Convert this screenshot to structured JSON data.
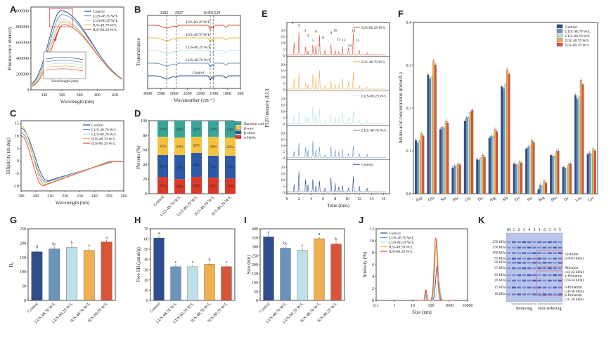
{
  "colors": {
    "Control": "#2f4c8c",
    "LUS-48.70 W/L": "#6b94bd",
    "LUS-80.29 W/L": "#bfe0e6",
    "IUS-48.70 W/L": "#f0b04f",
    "IUS-80.29 W/L": "#d9553a"
  },
  "panels": {
    "A": {
      "label": "A",
      "xlabel": "Wavelength (nm)",
      "ylabel": "Fluorescence intensity",
      "xticks": [
        "340",
        "360",
        "380",
        "400",
        "420"
      ],
      "yticks": [
        "0",
        "200000",
        "400000",
        "600000",
        "800000",
        "1000000"
      ],
      "legend": [
        "Control",
        "LUS-48.70 W/L",
        "LUS-80.29 W/L",
        "IUS-48.70 W/L",
        "IUS-80.29 W/L"
      ],
      "inset_xlabel": "Wavelength (nm)"
    },
    "B": {
      "label": "B",
      "xlabel": "Wavenumber (cm⁻¹)",
      "ylabel": "Transmittance",
      "xticks": [
        "4000",
        "3500",
        "3000",
        "2500",
        "2000",
        "1500",
        "1000",
        "500"
      ],
      "peaks": [
        "3282",
        "2927",
        "1640",
        "1529"
      ],
      "curve_labels": [
        "IUS-80.29 W/L",
        "IUS-48.70 W/L",
        "LUS-80.29 W/L",
        "LUS-48.70 W/L",
        "Control"
      ]
    },
    "C": {
      "label": "C",
      "xlabel": "Wavelength (nm)",
      "ylabel": "Ellipticity (m deg)",
      "xticks": [
        "190",
        "200",
        "210",
        "220",
        "230",
        "240",
        "250",
        "260"
      ],
      "yticks": [
        "-10",
        "-5",
        "0",
        "5",
        "10",
        "15"
      ],
      "legend": [
        "Control",
        "LUS-48.70 W/L",
        "LUS-80.29 W/L",
        "IUS-48.70 W/L",
        "IUS-80.29 W/L"
      ]
    },
    "D": {
      "label": "D",
      "ylabel": "Percent (%)",
      "yticks": [
        "0",
        "20",
        "40",
        "60",
        "80",
        "100"
      ],
      "legend": [
        "Random coil",
        "β-turn",
        "β-sheet",
        "α-Helix"
      ]
    },
    "E": {
      "label": "E",
      "xlabel": "Time (min)",
      "ylabel": "FLD intensity (LU)",
      "xticks": [
        "0",
        "2",
        "4",
        "6",
        "8",
        "10",
        "12",
        "14",
        "16"
      ],
      "traces": [
        "IUS-80.29 W/L",
        "IUS-48.70 W/L",
        "LUS-80.29 W/L",
        "LUS-48.70 W/L",
        "Control"
      ],
      "peak_ids": [
        "1",
        "2",
        "3",
        "4",
        "5",
        "6",
        "7",
        "8",
        "9",
        "10",
        "11",
        "12",
        "13",
        "14",
        "15"
      ]
    },
    "F": {
      "label": "F",
      "ylabel": "Amino acid concentration (mmol/L)",
      "yticks": [
        "0.0",
        "0.1",
        "0.2",
        "0.3",
        "0.4"
      ],
      "legend": [
        "Control",
        "LUS-48.70 W/L",
        "LUS-80.29 W/L",
        "IUS-48.70 W/L",
        "IUS-80.29 W/L"
      ]
    },
    "G": {
      "label": "G",
      "ylabel": "H₀",
      "yticks": [
        "0",
        "50",
        "100",
        "150",
        "200",
        "250"
      ]
    },
    "H": {
      "label": "H",
      "ylabel": "Free SH (μmol/g)",
      "yticks": [
        "0",
        "10",
        "20",
        "30",
        "40",
        "50",
        "60",
        "70"
      ]
    },
    "I": {
      "label": "I",
      "ylabel": "Size (nm)",
      "yticks": [
        "0",
        "50",
        "100",
        "150",
        "200",
        "250",
        "300",
        "350",
        "400"
      ]
    },
    "J": {
      "label": "J",
      "xlabel": "Size (nm)",
      "ylabel": "Intensity (%)",
      "xticks": [
        "0.1",
        "1",
        "10",
        "100",
        "1000",
        "10000"
      ],
      "yticks": [
        "0",
        "2",
        "4",
        "6",
        "8",
        "10",
        "12"
      ],
      "legend": [
        "Control",
        "LUS-48.70 W/L",
        "LUS-80.29 W/L",
        "IUS-48.70 W/L",
        "IUS-80.29 W/L"
      ]
    },
    "K": {
      "label": "K",
      "lanes": [
        "M",
        "1",
        "2",
        "3",
        "4",
        "5",
        "1",
        "2",
        "3",
        "4",
        "5"
      ],
      "markers": [
        "250 kDa",
        "150 kDa",
        "100 kDa",
        "75 kDa",
        "50 kDa",
        "37 kDa",
        "25 kDa",
        "20 kDa",
        "15 kDa",
        "10 kDa"
      ],
      "bands": [
        "Globulin\n(54-63 kDa)",
        "Albumin\n(43-22 kDa)",
        "γ-Prolamin\n(24-34 kDa)",
        "α-Prolamin\n(18-36 kDa)",
        "β-Prolamin\n(11-36 kDa)"
      ],
      "groups": [
        "Reducing",
        "Non-reducing"
      ]
    }
  },
  "chart_data": [
    {
      "panel": "A",
      "type": "line",
      "title": "",
      "xlabel": "Wavelength (nm)",
      "ylabel": "Fluorescence intensity",
      "xlim": [
        325,
        430
      ],
      "ylim": [
        0,
        1050000
      ],
      "series": [
        {
          "name": "Control",
          "peak_x": 359,
          "peak_y": 1010000
        },
        {
          "name": "LUS-48.70 W/L",
          "peak_x": 360,
          "peak_y": 960000
        },
        {
          "name": "LUS-80.29 W/L",
          "peak_x": 360,
          "peak_y": 900000
        },
        {
          "name": "IUS-48.70 W/L",
          "peak_x": 361,
          "peak_y": 870000
        },
        {
          "name": "IUS-80.29 W/L",
          "peak_x": 362,
          "peak_y": 830000
        }
      ]
    },
    {
      "panel": "B",
      "type": "line",
      "title": "",
      "xlabel": "Wavenumber (cm⁻¹)",
      "ylabel": "Transmittance",
      "xlim": [
        4000,
        500
      ],
      "series": [
        "IUS-80.29 W/L",
        "IUS-48.70 W/L",
        "LUS-80.29 W/L",
        "LUS-48.70 W/L",
        "Control"
      ],
      "peaks": [
        3282,
        2927,
        1640,
        1529
      ]
    },
    {
      "panel": "C",
      "type": "line",
      "title": "",
      "xlabel": "Wavelength (nm)",
      "ylabel": "Ellipticity (m deg)",
      "xlim": [
        190,
        260
      ],
      "ylim": [
        -12,
        16
      ],
      "series": [
        {
          "name": "Control",
          "start": 13,
          "min_x": 208,
          "min_y": -8
        },
        {
          "name": "LUS-48.70 W/L",
          "start": 11,
          "min_x": 207,
          "min_y": -8.5
        },
        {
          "name": "LUS-80.29 W/L",
          "start": 12,
          "min_x": 206,
          "min_y": -9
        },
        {
          "name": "IUS-48.70 W/L",
          "start": 14,
          "min_x": 206,
          "min_y": -9.5
        },
        {
          "name": "IUS-80.29 W/L",
          "start": 10,
          "min_x": 205,
          "min_y": -10
        }
      ]
    },
    {
      "panel": "D",
      "type": "bar",
      "title": "",
      "ylabel": "Percent (%)",
      "ylim": [
        0,
        100
      ],
      "categories": [
        "Control",
        "LUS-48.70 W/L",
        "LUS-80.29 W/L",
        "IUS-48.70 W/L",
        "IUS-80.29 W/L"
      ],
      "series": [
        {
          "name": "α-Helix",
          "values": [
            23,
            20,
            23,
            22,
            21
          ]
        },
        {
          "name": "β-sheet",
          "values": [
            30,
            33,
            33,
            30,
            31
          ]
        },
        {
          "name": "β-turn",
          "values": [
            25,
            24,
            22,
            26,
            25
          ]
        },
        {
          "name": "Random coil",
          "values": [
            22,
            23,
            22,
            22,
            23
          ]
        }
      ]
    },
    {
      "panel": "E",
      "type": "line",
      "title": "",
      "xlabel": "Time (min)",
      "ylabel": "FLD intensity (LU)",
      "xlim": [
        0,
        17
      ],
      "ylim": [
        0,
        25
      ],
      "series": [
        "IUS-80.29 W/L",
        "IUS-48.70 W/L",
        "LUS-80.29 W/L",
        "LUS-48.70 W/L",
        "Control"
      ]
    },
    {
      "panel": "F",
      "type": "bar",
      "title": "",
      "ylabel": "Amino acid concentration (mmol/L)",
      "ylim": [
        0,
        0.4
      ],
      "categories": [
        "Asp",
        "Glu",
        "Ser",
        "His",
        "Gly",
        "Thr",
        "Arg",
        "Ala",
        "Tyr",
        "Val",
        "Met",
        "Phe",
        "Ile",
        "Leu",
        "Lys"
      ],
      "series": [
        {
          "name": "Control",
          "values": [
            0.125,
            0.278,
            0.15,
            0.06,
            0.17,
            0.08,
            0.13,
            0.25,
            0.07,
            0.105,
            0.01,
            0.09,
            0.062,
            0.23,
            0.092
          ]
        },
        {
          "name": "LUS-48.70 W/L",
          "values": [
            0.118,
            0.268,
            0.155,
            0.065,
            0.178,
            0.078,
            0.135,
            0.245,
            0.068,
            0.108,
            0.02,
            0.088,
            0.06,
            0.22,
            0.095
          ]
        },
        {
          "name": "LUS-80.29 W/L",
          "values": [
            0.122,
            0.272,
            0.152,
            0.063,
            0.175,
            0.082,
            0.132,
            0.255,
            0.066,
            0.11,
            0.015,
            0.085,
            0.058,
            0.225,
            0.09
          ]
        },
        {
          "name": "IUS-48.70 W/L",
          "values": [
            0.14,
            0.31,
            0.17,
            0.07,
            0.19,
            0.09,
            0.15,
            0.29,
            0.075,
            0.125,
            0.03,
            0.098,
            0.068,
            0.265,
            0.105
          ]
        },
        {
          "name": "IUS-80.29 W/L",
          "values": [
            0.135,
            0.3,
            0.165,
            0.068,
            0.195,
            0.085,
            0.145,
            0.28,
            0.072,
            0.12,
            0.025,
            0.1,
            0.07,
            0.255,
            0.1
          ]
        }
      ]
    },
    {
      "panel": "G",
      "type": "bar",
      "title": "",
      "ylabel": "H₀",
      "ylim": [
        0,
        250
      ],
      "categories": [
        "Control",
        "LUS-48.70 W/L",
        "LUS-80.29 W/L",
        "IUS-48.70 W/L",
        "IUS-80.29 W/L"
      ],
      "values": [
        170,
        180,
        185,
        175,
        204
      ],
      "letters": [
        "d",
        "bc",
        "b",
        "c",
        "a"
      ]
    },
    {
      "panel": "H",
      "type": "bar",
      "title": "",
      "ylabel": "Free SH (μmol/g)",
      "ylim": [
        0,
        70
      ],
      "categories": [
        "Control",
        "LUS-48.70 W/L",
        "LUS-80.29 W/L",
        "IUS-48.70 W/L",
        "IUS-80.29 W/L"
      ],
      "values": [
        61,
        33,
        33,
        35.5,
        33
      ],
      "letters": [
        "a",
        "c",
        "c",
        "b",
        "c"
      ]
    },
    {
      "panel": "I",
      "type": "bar",
      "title": "",
      "ylabel": "Size (nm)",
      "ylim": [
        0,
        400
      ],
      "categories": [
        "Control",
        "LUS-48.70 W/L",
        "LUS-80.29 W/L",
        "IUS-48.70 W/L",
        "IUS-80.29 W/L"
      ],
      "values": [
        355,
        292,
        280,
        345,
        315
      ],
      "letters": [
        "a",
        "bc",
        "c",
        "a",
        "b"
      ]
    },
    {
      "panel": "J",
      "type": "line",
      "title": "",
      "xlabel": "Size (nm)",
      "ylabel": "Intensity (%)",
      "xscale": "log",
      "xlim": [
        0.1,
        10000
      ],
      "ylim": [
        0,
        12
      ],
      "series": [
        {
          "name": "Control",
          "peak_x": 220,
          "peak_y": 5.8
        },
        {
          "name": "LUS-48.70 W/L",
          "peak_x": 190,
          "peak_y": 9.2
        },
        {
          "name": "LUS-80.29 W/L",
          "peak_x": 260,
          "peak_y": 3.6
        },
        {
          "name": "IUS-48.70 W/L",
          "peak_x": 200,
          "peak_y": 10.2
        },
        {
          "name": "IUS-80.29 W/L",
          "peak_x": 180,
          "peak_y": 10.5
        }
      ]
    }
  ]
}
